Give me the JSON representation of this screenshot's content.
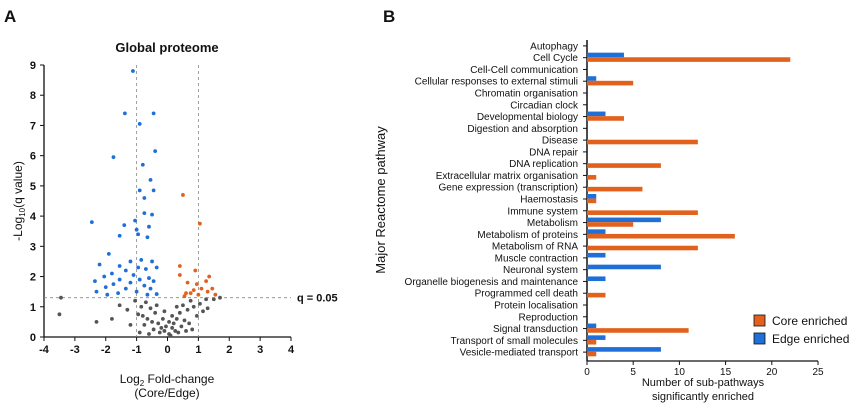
{
  "colors": {
    "blue": "#1f6fd9",
    "orange": "#e2611d",
    "grey": "#555555",
    "black": "#111111"
  },
  "chart_data": [
    {
      "type": "scatter",
      "panel_label": "A",
      "title": "Global proteome",
      "xlabel_main": "Log",
      "xlabel_sub": "2",
      "xlabel_rest": " Fold-change",
      "xlabel_line2": "(Core/Edge)",
      "ylabel_main": "-Log",
      "ylabel_sub": "10",
      "ylabel_rest": "(q value)",
      "xlim": [
        -4,
        4
      ],
      "ylim": [
        0,
        9
      ],
      "xticks": [
        "-4",
        "-3",
        "-2",
        "-1",
        "0",
        "1",
        "2",
        "3",
        "4"
      ],
      "yticks": [
        "0",
        "1",
        "2",
        "3",
        "4",
        "5",
        "6",
        "7",
        "8",
        "9"
      ],
      "vlines": [
        -1,
        1
      ],
      "hline": 1.3,
      "hline_label": "q = 0.05",
      "series": [
        {
          "name": "Edge enriched",
          "color": "blue",
          "points": [
            [
              -1.12,
              8.8
            ],
            [
              -1.38,
              7.4
            ],
            [
              -0.9,
              7.05
            ],
            [
              -0.45,
              7.4
            ],
            [
              -1.75,
              5.95
            ],
            [
              -0.4,
              6.15
            ],
            [
              -0.8,
              5.7
            ],
            [
              -0.55,
              5.2
            ],
            [
              -0.9,
              4.85
            ],
            [
              -0.45,
              4.85
            ],
            [
              -0.75,
              4.6
            ],
            [
              -0.75,
              4.1
            ],
            [
              -0.5,
              4.05
            ],
            [
              -1.05,
              3.85
            ],
            [
              -2.45,
              3.8
            ],
            [
              -1.4,
              3.7
            ],
            [
              -0.6,
              3.65
            ],
            [
              -1.0,
              3.55
            ],
            [
              -0.95,
              3.4
            ],
            [
              -1.55,
              3.35
            ],
            [
              -0.65,
              3.3
            ],
            [
              -1.9,
              2.75
            ],
            [
              -0.85,
              2.55
            ],
            [
              -1.2,
              2.5
            ],
            [
              -0.5,
              2.5
            ],
            [
              -2.2,
              2.4
            ],
            [
              -1.55,
              2.35
            ],
            [
              -0.95,
              2.3
            ],
            [
              -0.7,
              2.25
            ],
            [
              -0.35,
              2.3
            ],
            [
              -1.35,
              2.2
            ],
            [
              -1.8,
              2.1
            ],
            [
              -1.1,
              2.05
            ],
            [
              -2.05,
              2.0
            ],
            [
              -0.6,
              1.95
            ],
            [
              -1.55,
              1.9
            ],
            [
              -0.9,
              1.9
            ],
            [
              -2.35,
              1.85
            ],
            [
              -0.45,
              1.85
            ],
            [
              -1.2,
              1.8
            ],
            [
              -1.75,
              1.75
            ],
            [
              -0.75,
              1.7
            ],
            [
              -2.0,
              1.65
            ],
            [
              -1.35,
              1.6
            ],
            [
              -0.55,
              1.6
            ],
            [
              -2.3,
              1.5
            ],
            [
              -1.0,
              1.5
            ],
            [
              -1.6,
              1.45
            ],
            [
              -0.65,
              1.4
            ],
            [
              -1.95,
              1.4
            ],
            [
              -0.35,
              1.42
            ]
          ]
        },
        {
          "name": "Core enriched",
          "color": "orange",
          "points": [
            [
              0.5,
              4.7
            ],
            [
              1.05,
              3.75
            ],
            [
              0.4,
              2.35
            ],
            [
              0.9,
              2.2
            ],
            [
              0.4,
              2.05
            ],
            [
              1.35,
              2.0
            ],
            [
              1.25,
              1.85
            ],
            [
              0.65,
              1.8
            ],
            [
              0.95,
              1.75
            ],
            [
              0.85,
              1.55
            ],
            [
              1.1,
              1.6
            ],
            [
              1.55,
              1.4
            ],
            [
              0.75,
              1.45
            ],
            [
              0.6,
              1.45
            ],
            [
              1.3,
              1.5
            ],
            [
              1.0,
              1.4
            ],
            [
              0.55,
              1.35
            ],
            [
              1.45,
              1.6
            ]
          ]
        },
        {
          "name": "Not significant",
          "color": "grey",
          "points": [
            [
              -3.45,
              1.3
            ],
            [
              -3.5,
              0.75
            ],
            [
              -1.55,
              1.05
            ],
            [
              -1.8,
              0.6
            ],
            [
              -2.3,
              0.5
            ],
            [
              -1.3,
              0.9
            ],
            [
              -1.05,
              1.2
            ],
            [
              -0.85,
              1.0
            ],
            [
              -0.7,
              1.15
            ],
            [
              -0.55,
              0.95
            ],
            [
              -0.95,
              0.75
            ],
            [
              -0.65,
              0.6
            ],
            [
              -0.4,
              0.8
            ],
            [
              -0.5,
              0.5
            ],
            [
              -0.75,
              0.4
            ],
            [
              -0.3,
              0.45
            ],
            [
              -0.2,
              0.3
            ],
            [
              -0.45,
              0.25
            ],
            [
              -0.1,
              0.2
            ],
            [
              -0.25,
              0.15
            ],
            [
              0.05,
              0.1
            ],
            [
              0.1,
              0.05
            ],
            [
              -0.05,
              0.35
            ],
            [
              0.15,
              0.3
            ],
            [
              0.25,
              0.2
            ],
            [
              0.35,
              0.15
            ],
            [
              0.2,
              0.45
            ],
            [
              0.45,
              0.35
            ],
            [
              0.3,
              0.6
            ],
            [
              0.55,
              0.55
            ],
            [
              0.4,
              0.8
            ],
            [
              0.65,
              0.9
            ],
            [
              0.5,
              1.05
            ],
            [
              0.75,
              1.2
            ],
            [
              0.85,
              1.0
            ],
            [
              0.95,
              0.7
            ],
            [
              0.7,
              0.45
            ],
            [
              1.05,
              1.1
            ],
            [
              1.25,
              1.25
            ],
            [
              1.5,
              1.25
            ],
            [
              1.7,
              1.3
            ],
            [
              1.15,
              0.85
            ],
            [
              0.6,
              0.2
            ],
            [
              -0.6,
              0.1
            ],
            [
              -0.15,
              0.6
            ],
            [
              0.05,
              0.5
            ],
            [
              -0.35,
              1.05
            ],
            [
              -1.2,
              0.4
            ],
            [
              -0.9,
              0.15
            ],
            [
              0.8,
              0.25
            ],
            [
              0.3,
              1.0
            ],
            [
              -0.1,
              0.85
            ],
            [
              0.15,
              0.7
            ],
            [
              -0.8,
              0.7
            ],
            [
              1.3,
              0.95
            ]
          ]
        }
      ]
    },
    {
      "type": "bar",
      "orientation": "horizontal",
      "panel_label": "B",
      "ylabel": "Major Reactome pathway",
      "xlabel": "Number of sub-pathways",
      "xlabel_line2": "significantly enriched",
      "xlim": [
        0,
        25
      ],
      "xticks": [
        "0",
        "5",
        "10",
        "15",
        "20",
        "25"
      ],
      "categories": [
        "Autophagy",
        "Cell Cycle",
        "Cell-Cell communication",
        "Cellular responses to external stimuli",
        "Chromatin organisation",
        "Circadian clock",
        "Developmental biology",
        "Digestion and absorption",
        "Disease",
        "DNA repair",
        "DNA replication",
        "Extracellular matrix organisation",
        "Gene expression (transcription)",
        "Haemostasis",
        "Immune system",
        "Metabolism",
        "Metabolism of proteins",
        "Metabolism of RNA",
        "Muscle contraction",
        "Neuronal system",
        "Organelle biogenesis and maintenance",
        "Programmed cell death",
        "Protein localisation",
        "Reproduction",
        "Signal transduction",
        "Transport of small molecules",
        "Vesicle-mediated transport"
      ],
      "series": [
        {
          "name": "Edge enriched",
          "color": "blue",
          "values": [
            0,
            4,
            0,
            1,
            0,
            0,
            2,
            0,
            0,
            0,
            0,
            0,
            0,
            1,
            0,
            8,
            2,
            0,
            2,
            8,
            2,
            0,
            0,
            0,
            1,
            2,
            8
          ]
        },
        {
          "name": "Core enriched",
          "color": "orange",
          "values": [
            0,
            22,
            0,
            5,
            0,
            0,
            4,
            0,
            12,
            0,
            8,
            1,
            6,
            1,
            12,
            5,
            16,
            12,
            0,
            0,
            0,
            2,
            0,
            0,
            11,
            1,
            1
          ]
        }
      ],
      "legend": [
        "Core enriched",
        "Edge enriched"
      ]
    }
  ]
}
